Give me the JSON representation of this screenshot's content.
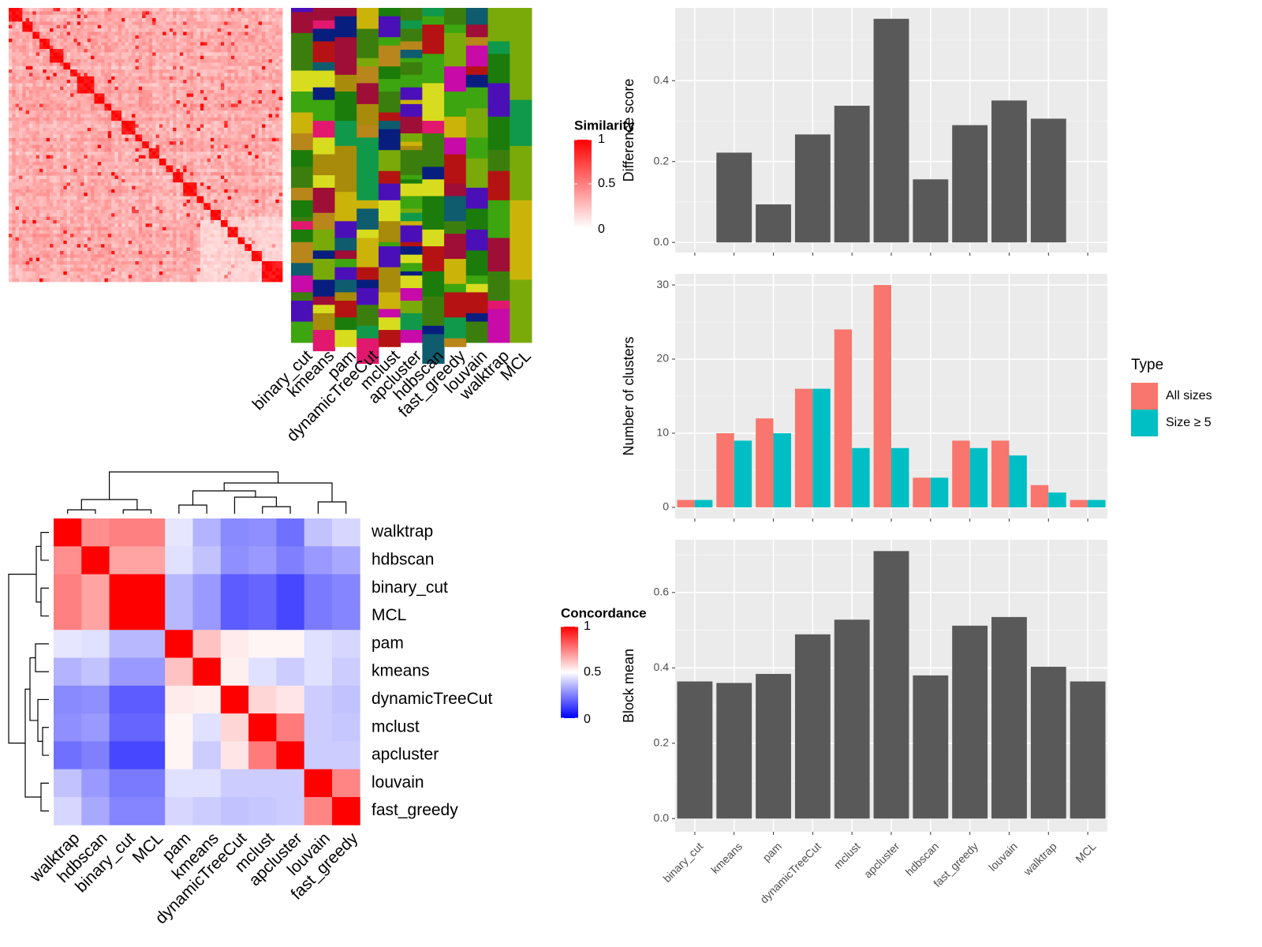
{
  "methods": [
    "binary_cut",
    "kmeans",
    "pam",
    "dynamicTreeCut",
    "mclust",
    "apcluster",
    "hdbscan",
    "fast_greedy",
    "louvain",
    "walktrap",
    "MCL"
  ],
  "similarity_legend": {
    "title": "Similarity",
    "ticks": [
      1,
      0.5,
      0
    ],
    "colors": [
      "#ffffff",
      "#ff0000"
    ]
  },
  "concordance_legend": {
    "title": "Concordance",
    "ticks": [
      1,
      0.5,
      0
    ],
    "colors": [
      "#0000ff",
      "#ffffff",
      "#ff0000"
    ]
  },
  "membership_palette": [
    "#7aaa0a",
    "#1b7c0b",
    "#d8dc1e",
    "#b51313",
    "#c70aa8",
    "#10994a",
    "#a88b0a",
    "#cbb30a",
    "#e1186e",
    "#0e5c6e",
    "#081e7e",
    "#4b0fb8",
    "#3da510",
    "#3c7e0e",
    "#b8861b",
    "#9e0e37"
  ],
  "chart_data": [
    {
      "type": "heatmap",
      "name": "term-similarity",
      "n": 80,
      "value_range": [
        0,
        1
      ],
      "block_sizes": [
        4,
        3,
        2,
        3,
        4,
        2,
        2,
        5,
        3,
        2,
        3,
        4,
        2,
        2,
        3,
        2,
        2,
        3,
        4,
        2,
        2,
        3,
        2,
        3,
        2,
        2,
        3,
        2
      ]
    },
    {
      "type": "heatmap",
      "name": "cluster-membership",
      "columns": [
        "binary_cut",
        "kmeans",
        "pam",
        "dynamicTreeCut",
        "mclust",
        "apcluster",
        "hdbscan",
        "fast_greedy",
        "louvain",
        "walktrap",
        "MCL"
      ]
    },
    {
      "type": "heatmap",
      "name": "method-concordance",
      "rows": [
        "walktrap",
        "hdbscan",
        "binary_cut",
        "MCL",
        "pam",
        "kmeans",
        "dynamicTreeCut",
        "mclust",
        "apcluster",
        "louvain",
        "fast_greedy"
      ],
      "columns": [
        "walktrap",
        "hdbscan",
        "binary_cut",
        "MCL",
        "pam",
        "kmeans",
        "dynamicTreeCut",
        "mclust",
        "apcluster",
        "louvain",
        "fast_greedy"
      ],
      "value_range": [
        0,
        1
      ],
      "values": [
        [
          1.0,
          0.72,
          0.75,
          0.75,
          0.45,
          0.35,
          0.27,
          0.28,
          0.22,
          0.38,
          0.42
        ],
        [
          0.72,
          1.0,
          0.68,
          0.68,
          0.44,
          0.38,
          0.28,
          0.3,
          0.25,
          0.3,
          0.33
        ],
        [
          0.75,
          0.68,
          1.0,
          1.0,
          0.36,
          0.3,
          0.18,
          0.2,
          0.14,
          0.24,
          0.26
        ],
        [
          0.75,
          0.68,
          1.0,
          1.0,
          0.36,
          0.3,
          0.18,
          0.2,
          0.14,
          0.24,
          0.26
        ],
        [
          0.45,
          0.44,
          0.36,
          0.36,
          1.0,
          0.62,
          0.54,
          0.52,
          0.52,
          0.44,
          0.42
        ],
        [
          0.35,
          0.38,
          0.3,
          0.3,
          0.62,
          1.0,
          0.53,
          0.44,
          0.4,
          0.44,
          0.4
        ],
        [
          0.27,
          0.28,
          0.18,
          0.18,
          0.54,
          0.53,
          1.0,
          0.58,
          0.55,
          0.4,
          0.38
        ],
        [
          0.28,
          0.3,
          0.2,
          0.2,
          0.52,
          0.44,
          0.58,
          1.0,
          0.76,
          0.4,
          0.39
        ],
        [
          0.22,
          0.25,
          0.14,
          0.14,
          0.52,
          0.4,
          0.55,
          0.76,
          1.0,
          0.4,
          0.4
        ],
        [
          0.38,
          0.3,
          0.24,
          0.24,
          0.44,
          0.44,
          0.4,
          0.4,
          0.4,
          1.0,
          0.74
        ],
        [
          0.42,
          0.33,
          0.26,
          0.26,
          0.42,
          0.4,
          0.38,
          0.39,
          0.4,
          0.74,
          1.0
        ]
      ],
      "dendrogram": [
        "((walktrap,hdbscan),(binary_cut,MCL))",
        "((((pam,kmeans),(dynamicTreeCut,(mclust,apcluster))),(louvain,fast_greedy))"
      ]
    },
    {
      "type": "bar",
      "name": "difference-score",
      "categories": [
        "binary_cut",
        "kmeans",
        "pam",
        "dynamicTreeCut",
        "mclust",
        "apcluster",
        "hdbscan",
        "fast_greedy",
        "louvain",
        "walktrap",
        "MCL"
      ],
      "values": [
        0,
        0.222,
        0.094,
        0.267,
        0.338,
        0.553,
        0.156,
        0.29,
        0.351,
        0.306,
        0
      ],
      "ylabel": "Difference score",
      "ylim": [
        -0.025,
        0.58
      ],
      "yticks": [
        "0.0",
        "0.2",
        "0.4"
      ],
      "grid": true
    },
    {
      "type": "bar",
      "name": "number-of-clusters",
      "categories": [
        "binary_cut",
        "kmeans",
        "pam",
        "dynamicTreeCut",
        "mclust",
        "apcluster",
        "hdbscan",
        "fast_greedy",
        "louvain",
        "walktrap",
        "MCL"
      ],
      "series": [
        {
          "name": "All sizes",
          "color": "#f8766d",
          "values": [
            1,
            10,
            12,
            16,
            24,
            30,
            4,
            9,
            9,
            3,
            1
          ]
        },
        {
          "name": "Size ≥ 5",
          "color": "#00bfc4",
          "values": [
            1,
            9,
            10,
            16,
            8,
            8,
            4,
            8,
            7,
            2,
            1
          ]
        }
      ],
      "ylabel": "Number of clusters",
      "ylim": [
        -1.5,
        31.5
      ],
      "yticks": [
        "0",
        "10",
        "20",
        "30"
      ],
      "legend": {
        "title": "Type",
        "placement": "right"
      },
      "grid": true
    },
    {
      "type": "bar",
      "name": "block-mean",
      "categories": [
        "binary_cut",
        "kmeans",
        "pam",
        "dynamicTreeCut",
        "mclust",
        "apcluster",
        "hdbscan",
        "fast_greedy",
        "louvain",
        "walktrap",
        "MCL"
      ],
      "values": [
        0.364,
        0.36,
        0.384,
        0.489,
        0.528,
        0.71,
        0.38,
        0.512,
        0.535,
        0.403,
        0.364
      ],
      "ylabel": "Block mean",
      "ylim": [
        -0.035,
        0.74
      ],
      "yticks": [
        "0.0",
        "0.2",
        "0.4",
        "0.6"
      ],
      "grid": true
    }
  ]
}
